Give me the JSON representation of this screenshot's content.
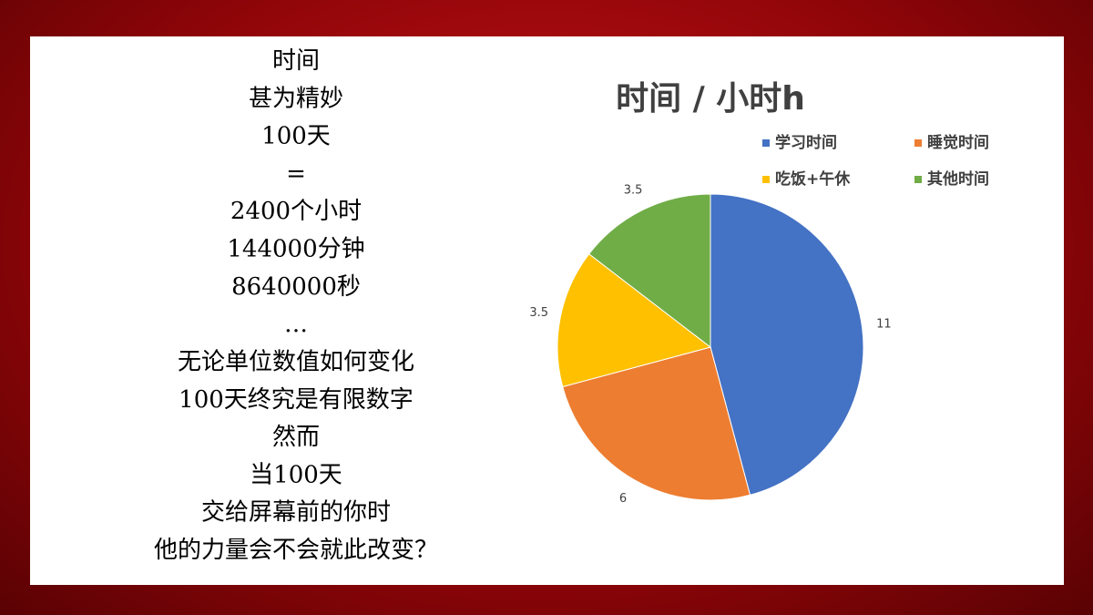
{
  "left_text": [
    "时间",
    "甚为精妙",
    "100天",
    "=",
    "2400个小时",
    "144000分钟",
    "8640000秒",
    "…",
    "无论单位数值如何变化",
    "100天终究是有限数字",
    "然而",
    "当100天",
    "交给屏幕前的你时",
    "他的力量会不会就此改变？"
  ],
  "chart_data": {
    "type": "pie",
    "title": "时间 / 小时h",
    "categories": [
      "学习时间",
      "睡觉时间",
      "吃饭+午休",
      "其他时间"
    ],
    "values": [
      11,
      6,
      3.5,
      3.5
    ],
    "colors": [
      "#4472c4",
      "#ed7d31",
      "#ffc000",
      "#70ad47"
    ],
    "legend": "top"
  }
}
